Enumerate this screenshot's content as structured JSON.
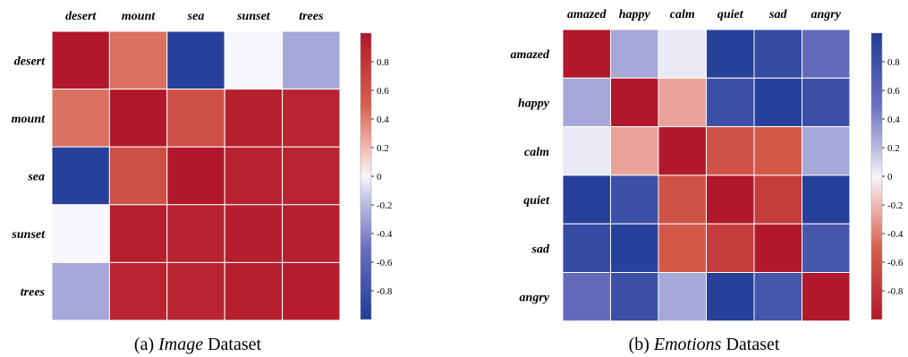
{
  "chart_data": [
    {
      "type": "heatmap",
      "caption_prefix": "(a)",
      "caption_italic": "Image",
      "caption_suffix": "Dataset",
      "x_labels": [
        "desert",
        "mount",
        "sea",
        "sunset",
        "trees"
      ],
      "y_labels": [
        "desert",
        "mount",
        "sea",
        "sunset",
        "trees"
      ],
      "values": [
        [
          1.0,
          0.45,
          -0.95,
          0.0,
          -0.3
        ],
        [
          0.45,
          1.0,
          0.62,
          0.95,
          0.92
        ],
        [
          -0.95,
          0.62,
          1.0,
          0.93,
          0.92
        ],
        [
          0.0,
          0.95,
          0.93,
          0.96,
          0.95
        ],
        [
          -0.3,
          0.92,
          0.92,
          0.95,
          0.97
        ]
      ],
      "colorbar": {
        "ticks": [
          0.8,
          0.6,
          0.4,
          0.2,
          0,
          -0.2,
          -0.4,
          -0.6,
          -0.8
        ],
        "tick_labels": [
          "0.8",
          "0.6",
          "0.4",
          "0.2",
          "0",
          "-0.2",
          "-0.4",
          "-0.6",
          "-0.8"
        ],
        "range": [
          -1,
          1
        ],
        "top_color": "red",
        "bottom_color": "blue"
      }
    },
    {
      "type": "heatmap",
      "caption_prefix": "(b)",
      "caption_italic": "Emotions",
      "caption_suffix": "Dataset",
      "x_labels": [
        "amazed",
        "happy",
        "calm",
        "quiet",
        "sad",
        "angry"
      ],
      "y_labels": [
        "amazed",
        "happy",
        "calm",
        "quiet",
        "sad",
        "angry"
      ],
      "values": [
        [
          1.0,
          -0.3,
          -0.05,
          -0.95,
          -0.85,
          -0.55
        ],
        [
          -0.3,
          1.0,
          0.3,
          -0.8,
          -0.95,
          -0.8
        ],
        [
          -0.05,
          0.3,
          1.0,
          0.6,
          0.55,
          -0.3
        ],
        [
          -0.95,
          -0.8,
          0.6,
          1.0,
          0.75,
          -0.95
        ],
        [
          -0.85,
          -0.95,
          0.55,
          0.75,
          1.0,
          -0.75
        ],
        [
          -0.55,
          -0.8,
          -0.3,
          -0.95,
          -0.75,
          1.0
        ]
      ],
      "colorbar": {
        "ticks": [
          0.8,
          0.6,
          0.4,
          0.2,
          0,
          -0.2,
          -0.4,
          -0.6,
          -0.8
        ],
        "tick_labels": [
          "0.8",
          "0.6",
          "0.4",
          "0.2",
          "0",
          "-0.2",
          "-0.4",
          "-0.6",
          "-0.8"
        ],
        "range": [
          -1,
          1
        ],
        "top_color": "blue",
        "bottom_color": "red"
      }
    }
  ]
}
